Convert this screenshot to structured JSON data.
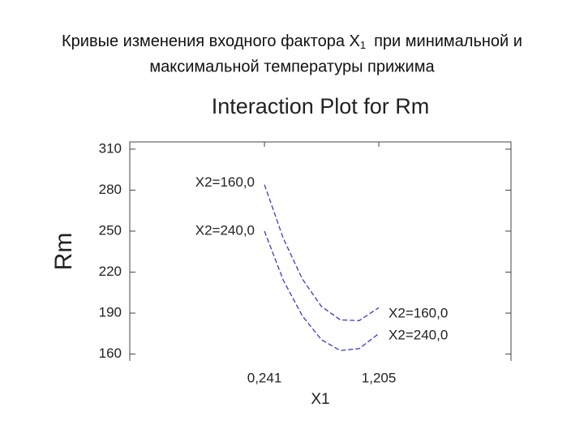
{
  "slide_title": {
    "before": "Кривые изменения входного фактора X",
    "subscript": "1",
    "after": "при минимальной и",
    "line2": "максимальной температуры прижима"
  },
  "chart_data": {
    "type": "line",
    "title": "Interaction Plot for Rm",
    "x_label": "X1",
    "y_label": "Rm",
    "x": [
      0.241,
      0.4,
      0.56,
      0.72,
      0.88,
      1.04,
      1.205
    ],
    "series": [
      {
        "name": "X2=160,0",
        "color": "#3a3ac8",
        "values": [
          284,
          244.7,
          215,
          195,
          185,
          184.5,
          194
        ]
      },
      {
        "name": "X2=240,0",
        "color": "#3a3ac8",
        "values": [
          250,
          214,
          188,
          170.6,
          162.6,
          164,
          175
        ]
      }
    ],
    "xlim": [
      -0.894,
      2.319
    ],
    "xticks": [
      {
        "value": 0.241,
        "label": "0,241"
      },
      {
        "value": 1.205,
        "label": "1,205"
      }
    ],
    "ylim": [
      155,
      315.3
    ],
    "yticks": [
      160,
      190,
      220,
      250,
      280,
      310
    ],
    "dashed": true
  }
}
